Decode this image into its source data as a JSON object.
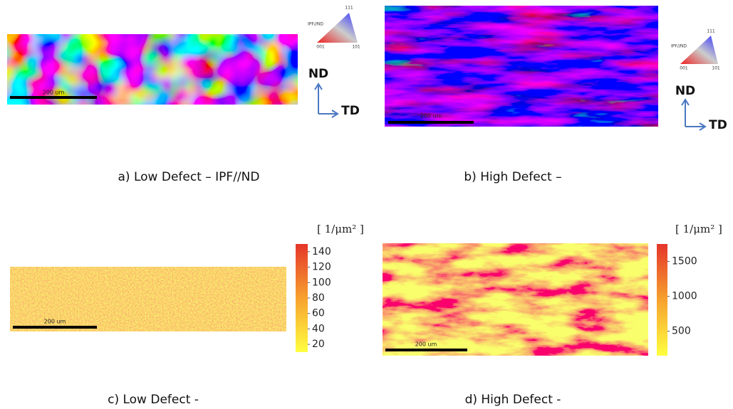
{
  "panels": [
    {
      "caption": "a) Low Defect – IPF//ND",
      "scale_bar": "200 um",
      "key": {
        "title": "IPF//ND",
        "corners": [
          "111",
          "001",
          "101"
        ]
      },
      "axes": [
        "ND",
        "TD"
      ]
    },
    {
      "caption": "b) High Defect –",
      "scale_bar": "200 um",
      "key": {
        "title": "IPF//ND",
        "corners": [
          "111",
          "001",
          "101"
        ]
      },
      "axes": [
        "ND",
        "TD"
      ]
    },
    {
      "caption": "c) Low Defect -",
      "scale_bar": "200 um"
    },
    {
      "caption": "d) High Defect -",
      "scale_bar": "200 um"
    }
  ],
  "colorbars": [
    {
      "unit": "[ 1/μm² ]",
      "lim": [
        10,
        150
      ],
      "ticks": [
        140,
        120,
        100,
        80,
        60,
        40,
        20
      ]
    },
    {
      "unit": "[ 1/μm² ]",
      "lim": [
        150,
        1750
      ],
      "ticks": [
        1500,
        1000,
        500
      ]
    }
  ]
}
